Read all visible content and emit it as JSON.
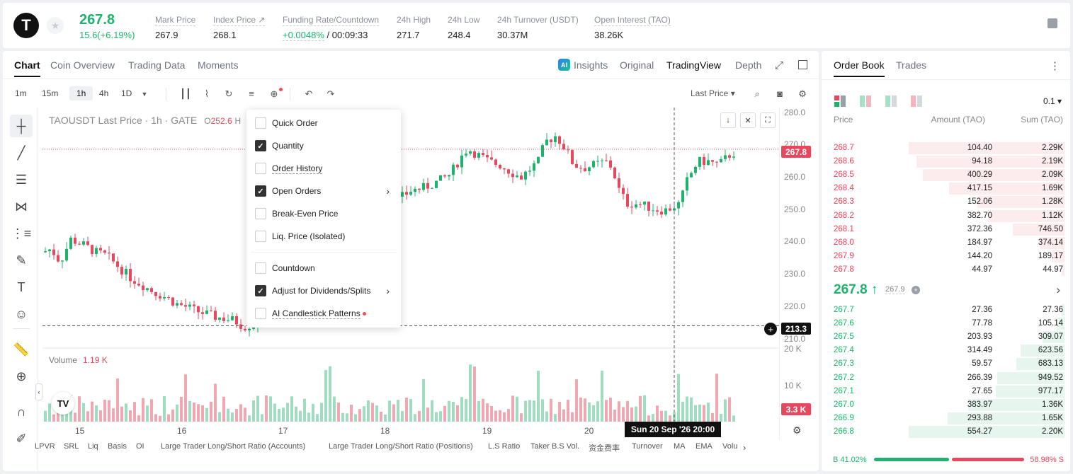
{
  "header": {
    "logo_letter": "T",
    "price": "267.8",
    "change": "15.6(+6.19%)",
    "stats": [
      {
        "label": "Mark Price",
        "value": "267.9"
      },
      {
        "label": "Index Price ↗",
        "value": "268.1"
      },
      {
        "label": "Funding Rate/Countdown",
        "value_green": "+0.0048%",
        "value": " / 00:09:33"
      },
      {
        "label": "24h High",
        "value": "271.7"
      },
      {
        "label": "24h Low",
        "value": "248.4"
      },
      {
        "label": "24h Turnover (USDT)",
        "value": "30.37M"
      },
      {
        "label": "Open Interest (TAO)",
        "value": "38.26K"
      }
    ]
  },
  "chart_tabs": [
    "Chart",
    "Coin Overview",
    "Trading Data",
    "Moments"
  ],
  "chart_tabs_right": {
    "insights": "Insights",
    "original": "Original",
    "tradingview": "TradingView",
    "depth": "Depth"
  },
  "timeframes": [
    "1m",
    "15m",
    "1h",
    "4h",
    "1D"
  ],
  "toolbar": {
    "price_source": "Last Price ▾"
  },
  "symbol_info": {
    "text": "TAOUSDT Last Price · 1h · GATE",
    "o_label": "O",
    "o_value": "252.6",
    "h_label": "H"
  },
  "y_axis": [
    "280.0",
    "270.0",
    "260.0",
    "250.0",
    "240.0",
    "230.0",
    "220.0",
    "210.0"
  ],
  "last_price_tag": "267.8",
  "cursor_price_tag": "213.3",
  "volume": {
    "label": "Volume",
    "value": "1.19 K",
    "axis": [
      "20 K",
      "10 K"
    ],
    "tag": "3.3 K"
  },
  "x_axis": [
    "15",
    "16",
    "17",
    "18",
    "19",
    "20"
  ],
  "crosshair_date": "Sun 20 Sep '26   20:00",
  "indicators": [
    "LPVR",
    "SRL",
    "Liq",
    "Basis",
    "OI",
    "Large Trader Long/Short Ratio (Accounts)",
    "Large Trader Long/Short Ratio (Positions)",
    "L.S Ratio",
    "Taker B.S Vol.",
    "资金费率",
    "Turnover",
    "MA",
    "EMA",
    "Volu"
  ],
  "popup": {
    "items": [
      {
        "label": "Quick Order",
        "checked": false
      },
      {
        "label": "Quantity",
        "checked": true
      },
      {
        "label": "Order History",
        "checked": false
      },
      {
        "label": "Open Orders",
        "checked": true
      },
      {
        "label": "Break-Even Price",
        "checked": false
      },
      {
        "label": "Liq. Price (Isolated)",
        "checked": false
      },
      {
        "label": "Countdown",
        "checked": false
      },
      {
        "label": "Adjust for Dividends/Splits",
        "checked": true
      },
      {
        "label": "AI Candlestick Patterns",
        "checked": false
      }
    ]
  },
  "orderbook": {
    "tabs": [
      "Order Book",
      "Trades"
    ],
    "precision": "0.1 ▾",
    "headers": {
      "price": "Price",
      "amount": "Amount (TAO)",
      "sum": "Sum (TAO)"
    },
    "asks": [
      {
        "price": "268.7",
        "amount": "104.40",
        "sum": "2.29K",
        "depth": 1.0
      },
      {
        "price": "268.6",
        "amount": "94.18",
        "sum": "2.19K",
        "depth": 0.95
      },
      {
        "price": "268.5",
        "amount": "400.29",
        "sum": "2.09K",
        "depth": 0.91
      },
      {
        "price": "268.4",
        "amount": "417.15",
        "sum": "1.69K",
        "depth": 0.74
      },
      {
        "price": "268.3",
        "amount": "152.06",
        "sum": "1.28K",
        "depth": 0.56
      },
      {
        "price": "268.2",
        "amount": "382.70",
        "sum": "1.12K",
        "depth": 0.49
      },
      {
        "price": "268.1",
        "amount": "372.36",
        "sum": "746.50",
        "depth": 0.33
      },
      {
        "price": "268.0",
        "amount": "184.97",
        "sum": "374.14",
        "depth": 0.16
      },
      {
        "price": "267.9",
        "amount": "144.20",
        "sum": "189.17",
        "depth": 0.08
      },
      {
        "price": "267.8",
        "amount": "44.97",
        "sum": "44.97",
        "depth": 0.02
      }
    ],
    "mid": {
      "price": "267.8 ↑",
      "mark": "267.9"
    },
    "bids": [
      {
        "price": "267.7",
        "amount": "27.36",
        "sum": "27.36",
        "depth": 0.01
      },
      {
        "price": "267.6",
        "amount": "77.78",
        "sum": "105.14",
        "depth": 0.05
      },
      {
        "price": "267.5",
        "amount": "203.93",
        "sum": "309.07",
        "depth": 0.14
      },
      {
        "price": "267.4",
        "amount": "314.49",
        "sum": "623.56",
        "depth": 0.28
      },
      {
        "price": "267.3",
        "amount": "59.57",
        "sum": "683.13",
        "depth": 0.31
      },
      {
        "price": "267.2",
        "amount": "266.39",
        "sum": "949.52",
        "depth": 0.43
      },
      {
        "price": "267.1",
        "amount": "27.65",
        "sum": "977.17",
        "depth": 0.44
      },
      {
        "price": "267.0",
        "amount": "383.97",
        "sum": "1.36K",
        "depth": 0.62
      },
      {
        "price": "266.9",
        "amount": "293.88",
        "sum": "1.65K",
        "depth": 0.75
      },
      {
        "price": "266.8",
        "amount": "554.27",
        "sum": "2.20K",
        "depth": 1.0
      }
    ],
    "ratio": {
      "buy": "B 41.02%",
      "sell": "58.98% S"
    }
  },
  "colors": {
    "up": "#20b26c",
    "down": "#e6485d"
  }
}
